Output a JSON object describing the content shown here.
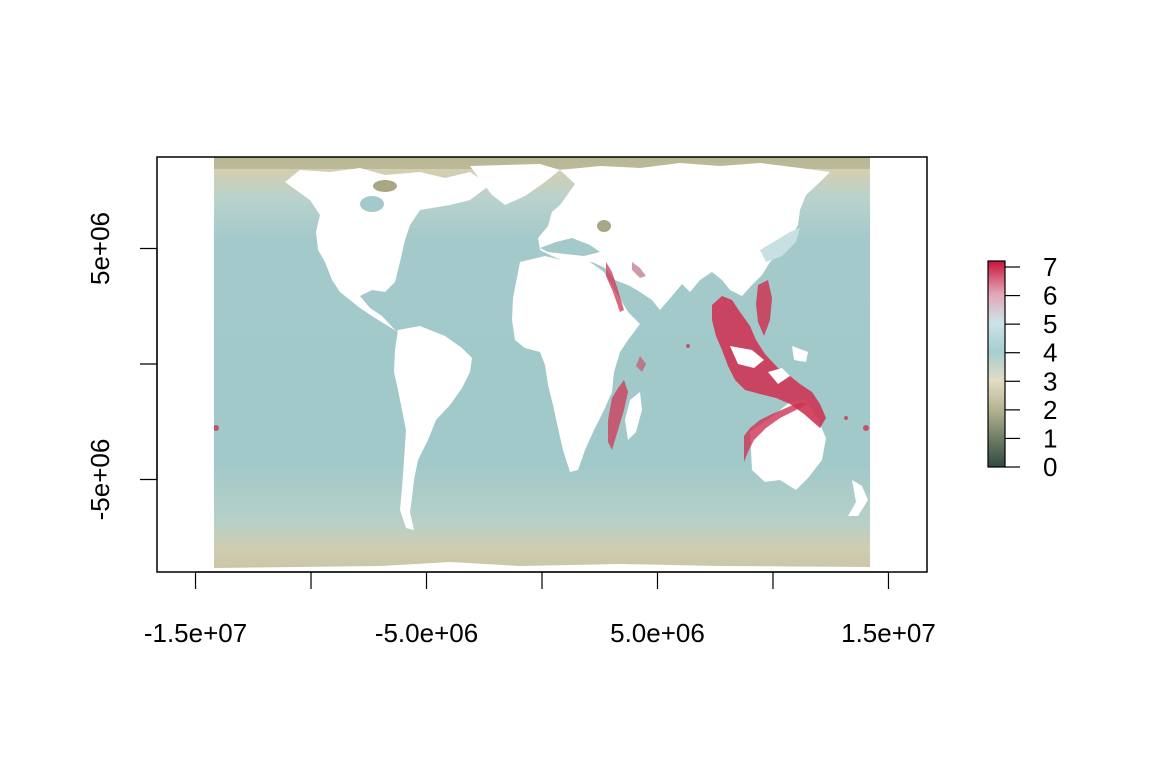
{
  "map": {
    "projection_extent": {
      "xmin": -14200000,
      "xmax": 14200000,
      "ymin": -8960000,
      "ymax": 8960000
    },
    "frame_extent": {
      "xmin": -16700000,
      "xmax": 16700000
    },
    "x_ticks": [
      {
        "value": -15000000,
        "label": "-1.5e+07"
      },
      {
        "value": -10000000,
        "label": ""
      },
      {
        "value": -5000000,
        "label": "-5.0e+06"
      },
      {
        "value": 0,
        "label": ""
      },
      {
        "value": 5000000,
        "label": "5.0e+06"
      },
      {
        "value": 10000000,
        "label": ""
      },
      {
        "value": 15000000,
        "label": "1.5e+07"
      }
    ],
    "y_ticks": [
      {
        "value": 5000000,
        "label": "5e+06"
      },
      {
        "value": 0,
        "label": ""
      },
      {
        "value": -5000000,
        "label": "-5e+06"
      }
    ],
    "colors": {
      "ocean": "#9fc8c8",
      "ocean_deep": "#a2cacb",
      "polar_band": "#cfcaaa",
      "polar_dark": "#b0b08c",
      "land": "#ffffff",
      "hotspot": "#cd3554"
    }
  },
  "legend": {
    "min": 0,
    "max": 7,
    "ticks": [
      "0",
      "1",
      "2",
      "3",
      "4",
      "5",
      "6",
      "7"
    ],
    "gradient": [
      {
        "stop": 0.0,
        "color": "#2f4a45"
      },
      {
        "stop": 0.14,
        "color": "#6e7e64"
      },
      {
        "stop": 0.28,
        "color": "#b4b493"
      },
      {
        "stop": 0.42,
        "color": "#e4dcc4"
      },
      {
        "stop": 0.56,
        "color": "#a6cdd0"
      },
      {
        "stop": 0.7,
        "color": "#cde4e8"
      },
      {
        "stop": 0.84,
        "color": "#e3a6b6"
      },
      {
        "stop": 1.0,
        "color": "#c8143c"
      }
    ]
  }
}
